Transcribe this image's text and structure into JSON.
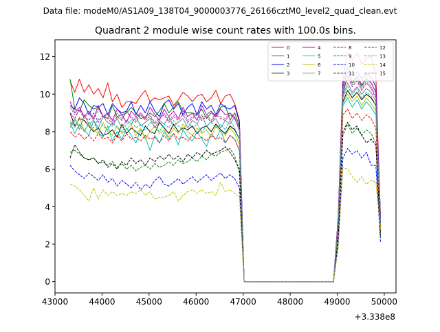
{
  "suptitle": "Data file: modeM0/AS1A09_138T04_9000003776_26166cztM0_level2_quad_clean.evt",
  "chart_data": {
    "type": "line",
    "title": "Quadrant 2 module wise count rates with 100.0s bins.",
    "xlabel": "",
    "ylabel": "",
    "x_offset_label": "+3.338e8",
    "xlim": [
      43000,
      50250
    ],
    "ylim": [
      -0.6,
      12.9
    ],
    "x_ticks": [
      43000,
      44000,
      45000,
      46000,
      47000,
      48000,
      49000,
      50000
    ],
    "x_tick_labels": [
      "43000",
      "44000",
      "45000",
      "46000",
      "47000",
      "48000",
      "49000",
      "50000"
    ],
    "y_ticks": [
      0,
      2,
      4,
      6,
      8,
      10,
      12
    ],
    "y_tick_labels": [
      "0",
      "2",
      "4",
      "6",
      "8",
      "10",
      "12"
    ],
    "grid": false,
    "legend_position": "top-right",
    "x": [
      43321,
      43421,
      43521,
      43621,
      43721,
      43821,
      43921,
      44021,
      44121,
      44221,
      44321,
      44421,
      44521,
      44621,
      44721,
      44821,
      44921,
      45021,
      45121,
      45221,
      45321,
      45421,
      45521,
      45621,
      45721,
      45821,
      45921,
      46021,
      46121,
      46221,
      46321,
      46421,
      46521,
      46621,
      46721,
      46821,
      46921,
      47021,
      47121,
      47221,
      47321,
      47421,
      47521,
      47621,
      47721,
      47821,
      47921,
      48021,
      48121,
      48221,
      48321,
      48421,
      48521,
      48621,
      48721,
      48821,
      48921,
      49021,
      49121,
      49221,
      49321,
      49421,
      49521,
      49621,
      49721,
      49821,
      49921
    ],
    "series": [
      {
        "name": "0",
        "color": "#ff0000",
        "dash": "solid",
        "values": [
          10.7,
          10.1,
          10.8,
          10.1,
          10.5,
          10.0,
          10.3,
          9.8,
          10.6,
          9.6,
          10.0,
          9.3,
          9.6,
          9.6,
          9.5,
          9.9,
          10.2,
          9.6,
          9.8,
          9.7,
          9.8,
          9.9,
          9.4,
          9.7,
          10.1,
          9.9,
          9.6,
          9.9,
          10.0,
          9.6,
          9.8,
          10.2,
          9.5,
          9.9,
          10.0,
          9.5,
          8.6,
          0.0,
          0.0,
          0.0,
          0.0,
          0.0,
          0.0,
          0.0,
          0.0,
          0.0,
          0.0,
          0.0,
          0.0,
          0.0,
          0.0,
          0.0,
          0.0,
          0.0,
          0.0,
          0.0,
          0.0,
          3.5,
          10.8,
          12.2,
          11.8,
          12.2,
          11.6,
          11.9,
          12.0,
          11.0,
          3.3
        ]
      },
      {
        "name": "1",
        "color": "#008000",
        "dash": "solid",
        "values": [
          10.8,
          9.2,
          9.1,
          9.7,
          9.4,
          9.2,
          9.3,
          8.8,
          8.7,
          9.4,
          8.8,
          8.9,
          9.0,
          9.3,
          9.0,
          8.7,
          8.8,
          9.0,
          8.8,
          9.1,
          9.5,
          9.0,
          9.3,
          9.6,
          9.1,
          9.0,
          9.0,
          8.9,
          9.2,
          8.7,
          9.0,
          8.8,
          9.3,
          9.4,
          8.6,
          9.0,
          8.3,
          0.0,
          0.0,
          0.0,
          0.0,
          0.0,
          0.0,
          0.0,
          0.0,
          0.0,
          0.0,
          0.0,
          0.0,
          0.0,
          0.0,
          0.0,
          0.0,
          0.0,
          0.0,
          0.0,
          0.0,
          3.2,
          10.0,
          11.0,
          10.6,
          10.9,
          10.4,
          10.9,
          10.6,
          10.1,
          3.5
        ]
      },
      {
        "name": "2",
        "color": "#0000ff",
        "dash": "solid",
        "values": [
          9.4,
          9.2,
          9.8,
          9.5,
          8.9,
          9.4,
          9.3,
          9.5,
          8.9,
          9.5,
          9.2,
          9.0,
          9.1,
          9.6,
          8.9,
          9.4,
          9.0,
          9.6,
          9.1,
          8.8,
          9.5,
          9.7,
          9.2,
          9.5,
          8.9,
          9.3,
          9.5,
          8.9,
          9.6,
          9.2,
          9.4,
          8.9,
          9.5,
          9.3,
          9.2,
          9.4,
          8.5,
          0.0,
          0.0,
          0.0,
          0.0,
          0.0,
          0.0,
          0.0,
          0.0,
          0.0,
          0.0,
          0.0,
          0.0,
          0.0,
          0.0,
          0.0,
          0.0,
          0.0,
          0.0,
          0.0,
          0.0,
          3.4,
          10.6,
          11.4,
          11.0,
          11.2,
          10.8,
          11.1,
          10.9,
          10.4,
          3.4
        ]
      },
      {
        "name": "3",
        "color": "#000000",
        "dash": "solid",
        "values": [
          9.0,
          8.3,
          8.7,
          8.6,
          8.3,
          8.0,
          8.2,
          7.8,
          7.9,
          8.1,
          7.7,
          8.4,
          7.9,
          8.2,
          8.0,
          7.8,
          8.3,
          8.0,
          7.9,
          8.5,
          8.2,
          7.9,
          8.4,
          8.0,
          8.2,
          8.1,
          8.3,
          7.9,
          8.2,
          8.3,
          8.0,
          8.4,
          8.1,
          7.9,
          8.3,
          8.1,
          7.6,
          0.0,
          0.0,
          0.0,
          0.0,
          0.0,
          0.0,
          0.0,
          0.0,
          0.0,
          0.0,
          0.0,
          0.0,
          0.0,
          0.0,
          0.0,
          0.0,
          0.0,
          0.0,
          0.0,
          0.0,
          3.0,
          9.6,
          10.2,
          9.8,
          10.1,
          9.7,
          10.0,
          9.8,
          9.4,
          3.1
        ]
      },
      {
        "name": "4",
        "color": "#bf00bf",
        "dash": "solid",
        "values": [
          9.6,
          9.0,
          9.3,
          8.8,
          9.1,
          8.7,
          9.4,
          8.8,
          9.0,
          8.6,
          9.2,
          8.9,
          8.5,
          9.1,
          8.8,
          9.0,
          8.7,
          9.3,
          8.9,
          8.6,
          9.2,
          8.8,
          9.1,
          8.7,
          9.3,
          8.8,
          9.0,
          8.6,
          9.4,
          8.9,
          9.1,
          8.8,
          9.2,
          8.9,
          9.0,
          8.7,
          8.2,
          0.0,
          0.0,
          0.0,
          0.0,
          0.0,
          0.0,
          0.0,
          0.0,
          0.0,
          0.0,
          0.0,
          0.0,
          0.0,
          0.0,
          0.0,
          0.0,
          0.0,
          0.0,
          0.0,
          0.0,
          3.3,
          10.4,
          11.2,
          10.7,
          11.0,
          10.5,
          10.8,
          10.6,
          10.1,
          3.3
        ]
      },
      {
        "name": "5",
        "color": "#00bfbf",
        "dash": "solid",
        "values": [
          8.5,
          7.9,
          8.4,
          8.1,
          7.8,
          8.6,
          8.0,
          7.7,
          8.3,
          7.5,
          8.0,
          7.6,
          8.2,
          7.8,
          7.4,
          8.1,
          7.7,
          7.0,
          7.8,
          7.4,
          8.0,
          7.6,
          7.9,
          7.3,
          8.1,
          7.7,
          7.5,
          8.0,
          7.6,
          7.2,
          7.9,
          7.6,
          8.1,
          7.4,
          7.8,
          7.6,
          7.0,
          0.0,
          0.0,
          0.0,
          0.0,
          0.0,
          0.0,
          0.0,
          0.0,
          0.0,
          0.0,
          0.0,
          0.0,
          0.0,
          0.0,
          0.0,
          0.0,
          0.0,
          0.0,
          0.0,
          0.0,
          2.8,
          9.4,
          9.8,
          9.3,
          9.7,
          9.2,
          9.6,
          9.3,
          8.9,
          2.9
        ]
      },
      {
        "name": "6",
        "color": "#bfbf00",
        "dash": "solid",
        "values": [
          8.6,
          8.2,
          8.8,
          8.0,
          8.4,
          8.1,
          7.9,
          8.5,
          8.0,
          7.8,
          8.3,
          7.9,
          8.1,
          8.4,
          7.8,
          8.2,
          7.6,
          8.0,
          8.3,
          7.9,
          8.1,
          7.7,
          8.2,
          7.9,
          8.4,
          8.0,
          7.8,
          8.2,
          7.9,
          8.1,
          7.7,
          8.3,
          8.0,
          7.8,
          8.2,
          7.9,
          7.3,
          0.0,
          0.0,
          0.0,
          0.0,
          0.0,
          0.0,
          0.0,
          0.0,
          0.0,
          0.0,
          0.0,
          0.0,
          0.0,
          0.0,
          0.0,
          0.0,
          0.0,
          0.0,
          0.0,
          0.0,
          2.9,
          9.5,
          10.0,
          9.6,
          9.9,
          9.4,
          9.8,
          9.5,
          9.1,
          2.8
        ]
      },
      {
        "name": "7",
        "color": "#808080",
        "dash": "solid",
        "values": [
          8.3,
          8.7,
          8.1,
          8.9,
          8.4,
          8.6,
          8.2,
          8.8,
          8.5,
          8.3,
          8.7,
          8.2,
          8.6,
          8.4,
          8.8,
          8.3,
          8.5,
          8.7,
          8.2,
          8.6,
          8.4,
          8.8,
          8.3,
          8.5,
          8.7,
          8.2,
          8.6,
          8.4,
          8.9,
          8.3,
          8.5,
          8.7,
          8.2,
          8.6,
          8.4,
          8.8,
          8.0,
          0.0,
          0.0,
          0.0,
          0.0,
          0.0,
          0.0,
          0.0,
          0.0,
          0.0,
          0.0,
          0.0,
          0.0,
          0.0,
          0.0,
          0.0,
          0.0,
          0.0,
          0.0,
          0.0,
          0.0,
          3.1,
          9.9,
          10.6,
          10.1,
          10.4,
          10.0,
          10.3,
          10.1,
          9.6,
          3.0
        ]
      },
      {
        "name": "8",
        "color": "#ff0000",
        "dash": "dashed",
        "values": [
          8.0,
          7.7,
          7.9,
          7.6,
          7.8,
          7.5,
          7.9,
          7.6,
          7.7,
          7.4,
          7.8,
          7.5,
          7.9,
          7.6,
          7.7,
          7.5,
          7.8,
          7.6,
          7.7,
          7.4,
          7.8,
          7.5,
          7.9,
          7.6,
          7.7,
          7.5,
          7.8,
          7.6,
          7.7,
          7.5,
          7.8,
          7.6,
          7.7,
          7.4,
          7.8,
          7.6,
          7.0,
          0.0,
          0.0,
          0.0,
          0.0,
          0.0,
          0.0,
          0.0,
          0.0,
          0.0,
          0.0,
          0.0,
          0.0,
          0.0,
          0.0,
          0.0,
          0.0,
          0.0,
          0.0,
          0.0,
          0.0,
          2.8,
          8.9,
          9.2,
          8.7,
          9.0,
          8.6,
          8.9,
          8.7,
          8.2,
          2.7
        ]
      },
      {
        "name": "9",
        "color": "#008000",
        "dash": "dashed",
        "values": [
          6.9,
          7.0,
          6.8,
          6.6,
          6.5,
          6.6,
          6.3,
          6.4,
          6.2,
          6.4,
          6.1,
          6.3,
          6.0,
          6.2,
          5.9,
          6.1,
          6.2,
          6.0,
          6.3,
          6.1,
          6.2,
          6.4,
          6.2,
          6.5,
          6.3,
          6.4,
          6.6,
          6.4,
          6.7,
          6.5,
          6.8,
          6.7,
          6.9,
          7.0,
          7.1,
          6.7,
          5.8,
          0.0,
          0.0,
          0.0,
          0.0,
          0.0,
          0.0,
          0.0,
          0.0,
          0.0,
          0.0,
          0.0,
          0.0,
          0.0,
          0.0,
          0.0,
          0.0,
          0.0,
          0.0,
          0.0,
          0.0,
          2.3,
          7.8,
          8.4,
          7.9,
          8.2,
          7.8,
          8.1,
          7.9,
          7.4,
          2.4
        ]
      },
      {
        "name": "10",
        "color": "#0000ff",
        "dash": "dashed",
        "values": [
          6.2,
          5.9,
          5.7,
          5.5,
          5.8,
          5.6,
          5.4,
          5.7,
          5.3,
          5.5,
          5.1,
          5.4,
          5.2,
          5.0,
          5.3,
          4.9,
          5.2,
          5.0,
          5.4,
          5.6,
          5.2,
          5.1,
          5.3,
          5.5,
          5.2,
          5.4,
          5.6,
          5.3,
          5.5,
          5.7,
          5.4,
          5.6,
          5.8,
          5.5,
          5.7,
          5.5,
          5.0,
          0.0,
          0.0,
          0.0,
          0.0,
          0.0,
          0.0,
          0.0,
          0.0,
          0.0,
          0.0,
          0.0,
          0.0,
          0.0,
          0.0,
          0.0,
          0.0,
          0.0,
          0.0,
          0.0,
          0.0,
          2.0,
          6.6,
          7.1,
          6.8,
          7.0,
          6.6,
          6.9,
          6.2,
          6.2,
          2.1
        ]
      },
      {
        "name": "11",
        "color": "#000000",
        "dash": "dashed",
        "values": [
          6.6,
          7.3,
          6.9,
          6.6,
          6.5,
          6.6,
          6.3,
          6.5,
          6.1,
          6.3,
          6.0,
          6.4,
          6.2,
          6.6,
          6.3,
          6.5,
          6.2,
          6.6,
          6.4,
          6.7,
          6.5,
          6.8,
          6.5,
          6.7,
          6.4,
          6.8,
          6.6,
          6.9,
          6.7,
          7.0,
          6.8,
          6.9,
          7.0,
          7.2,
          6.9,
          6.5,
          6.0,
          0.0,
          0.0,
          0.0,
          0.0,
          0.0,
          0.0,
          0.0,
          0.0,
          0.0,
          0.0,
          0.0,
          0.0,
          0.0,
          0.0,
          0.0,
          0.0,
          0.0,
          0.0,
          0.0,
          0.0,
          2.4,
          8.0,
          8.5,
          8.1,
          8.3,
          7.8,
          7.4,
          7.6,
          7.3,
          2.5
        ]
      },
      {
        "name": "12",
        "color": "#bf00bf",
        "dash": "dashed",
        "values": [
          9.0,
          8.7,
          9.2,
          8.8,
          8.6,
          9.0,
          8.5,
          8.9,
          8.7,
          8.4,
          8.8,
          8.6,
          9.1,
          8.7,
          8.5,
          8.9,
          8.6,
          8.8,
          8.4,
          8.7,
          8.9,
          8.5,
          8.8,
          8.6,
          8.9,
          8.5,
          8.7,
          8.9,
          8.6,
          8.8,
          8.5,
          8.9,
          8.7,
          8.6,
          8.9,
          8.7,
          8.1,
          0.0,
          0.0,
          0.0,
          0.0,
          0.0,
          0.0,
          0.0,
          0.0,
          0.0,
          0.0,
          0.0,
          0.0,
          0.0,
          0.0,
          0.0,
          0.0,
          0.0,
          0.0,
          0.0,
          0.0,
          3.2,
          10.2,
          10.9,
          10.4,
          10.7,
          10.2,
          10.6,
          10.3,
          9.8,
          3.2
        ]
      },
      {
        "name": "13",
        "color": "#00bfbf",
        "dash": "dashed",
        "values": [
          8.2,
          8.6,
          8.3,
          8.0,
          8.5,
          8.2,
          8.7,
          8.3,
          8.1,
          8.5,
          8.2,
          8.0,
          8.4,
          8.6,
          8.2,
          8.4,
          8.1,
          8.5,
          8.3,
          8.0,
          8.4,
          8.2,
          8.6,
          8.3,
          8.1,
          8.5,
          8.2,
          8.4,
          8.0,
          8.3,
          8.5,
          8.2,
          8.4,
          8.1,
          8.6,
          8.2,
          7.6,
          0.0,
          0.0,
          0.0,
          0.0,
          0.0,
          0.0,
          0.0,
          0.0,
          0.0,
          0.0,
          0.0,
          0.0,
          0.0,
          0.0,
          0.0,
          0.0,
          0.0,
          0.0,
          0.0,
          0.0,
          3.0,
          9.8,
          10.4,
          10.0,
          10.3,
          9.8,
          10.1,
          9.9,
          9.4,
          3.0
        ]
      },
      {
        "name": "14",
        "color": "#bfbf00",
        "dash": "dashed",
        "values": [
          5.2,
          5.1,
          4.9,
          4.6,
          4.3,
          5.0,
          4.4,
          4.9,
          4.6,
          4.8,
          4.6,
          4.7,
          4.6,
          4.8,
          4.7,
          4.9,
          4.6,
          4.8,
          4.4,
          4.5,
          4.5,
          4.6,
          4.8,
          4.3,
          4.6,
          4.8,
          4.9,
          4.7,
          4.9,
          4.7,
          4.8,
          4.6,
          5.3,
          4.8,
          4.9,
          4.7,
          4.5,
          0.0,
          0.0,
          0.0,
          0.0,
          0.0,
          0.0,
          0.0,
          0.0,
          0.0,
          0.0,
          0.0,
          0.0,
          0.0,
          0.0,
          0.0,
          0.0,
          0.0,
          0.0,
          0.0,
          0.0,
          1.8,
          6.1,
          6.0,
          5.6,
          5.3,
          5.6,
          5.2,
          5.4,
          5.3,
          2.8
        ]
      },
      {
        "name": "15",
        "color": "#808080",
        "dash": "dashed",
        "values": [
          9.3,
          8.9,
          9.1,
          8.7,
          9.0,
          8.6,
          9.2,
          8.8,
          8.9,
          8.5,
          9.0,
          8.7,
          9.1,
          8.8,
          8.6,
          9.0,
          8.7,
          8.9,
          8.5,
          8.8,
          9.0,
          8.6,
          8.9,
          8.7,
          9.1,
          8.6,
          8.8,
          9.0,
          8.7,
          8.9,
          8.6,
          9.0,
          8.8,
          8.7,
          9.0,
          8.8,
          8.2,
          0.0,
          0.0,
          0.0,
          0.0,
          0.0,
          0.0,
          0.0,
          0.0,
          0.0,
          0.0,
          0.0,
          0.0,
          0.0,
          0.0,
          0.0,
          0.0,
          0.0,
          0.0,
          0.0,
          0.0,
          3.3,
          10.3,
          11.0,
          10.5,
          10.8,
          10.3,
          10.7,
          10.4,
          9.9,
          3.3
        ]
      }
    ]
  }
}
